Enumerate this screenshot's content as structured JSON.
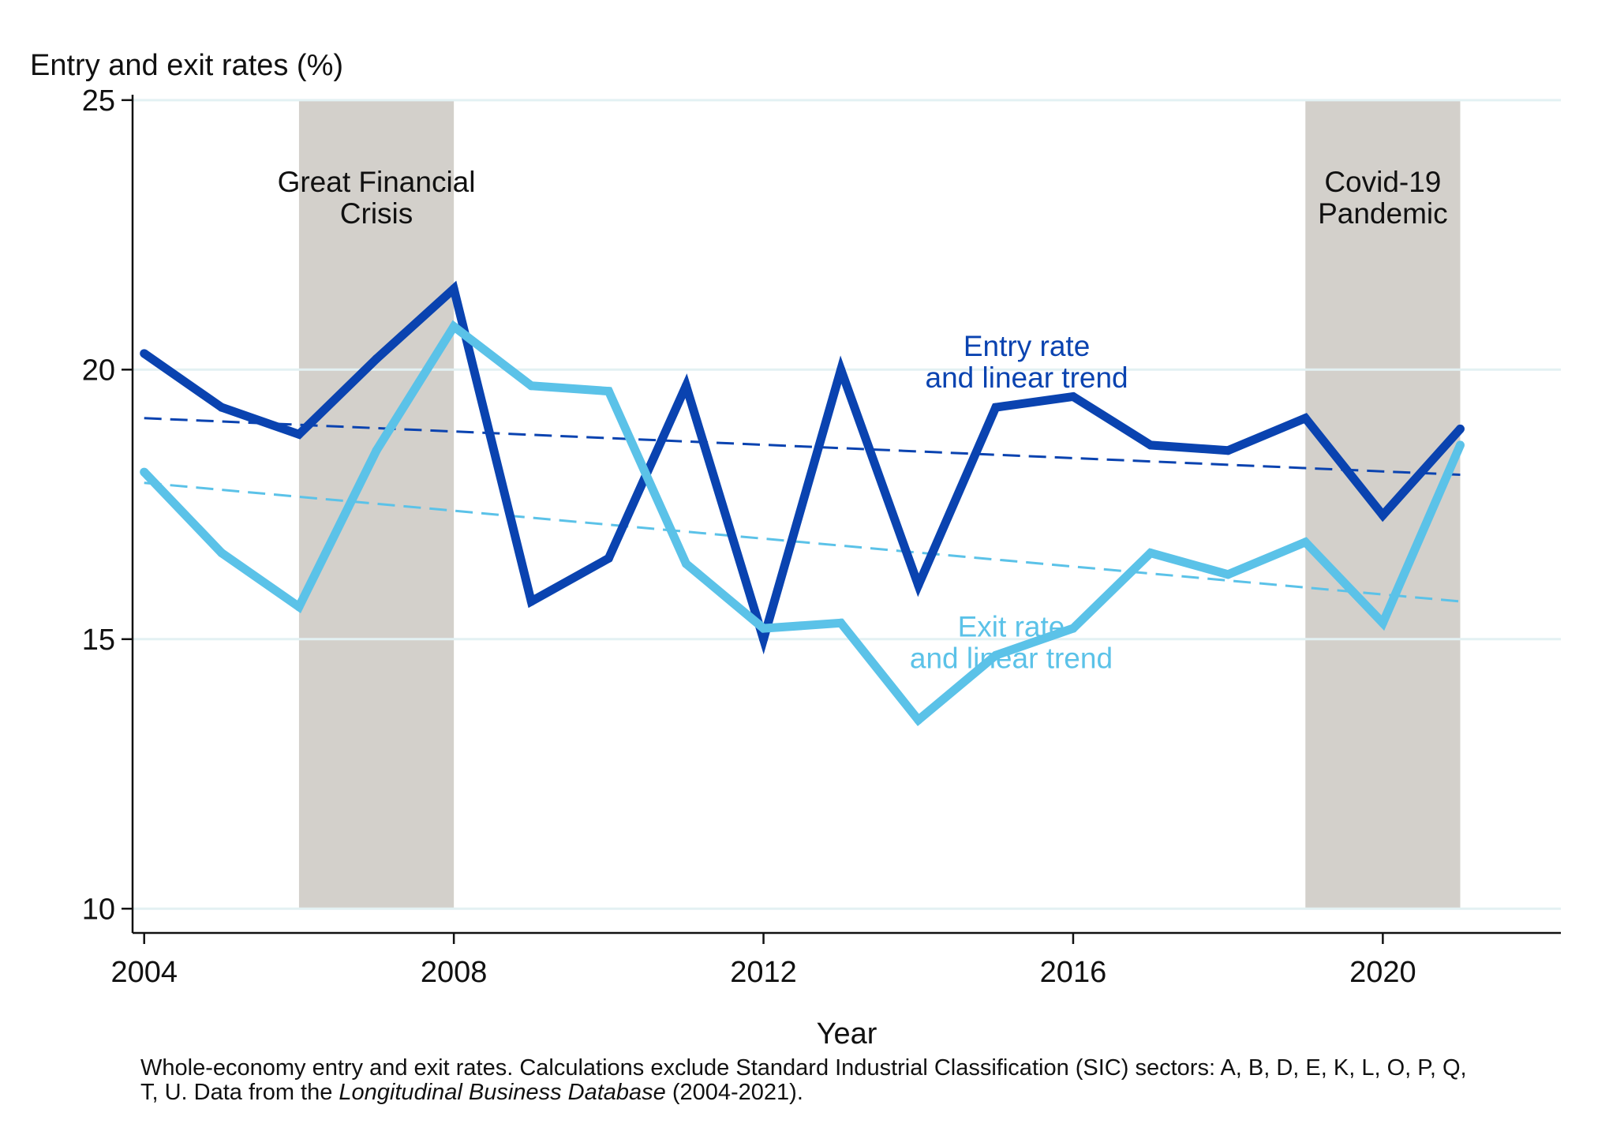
{
  "chart_data": {
    "type": "line",
    "ylabel": "Entry and exit rates (%)",
    "xlabel": "Year",
    "xlim": [
      2003.85,
      2022.3
    ],
    "ylim": [
      9.55,
      25.1
    ],
    "x_ticks": [
      2004,
      2008,
      2012,
      2016,
      2020
    ],
    "y_ticks": [
      10,
      15,
      20,
      25
    ],
    "grid": "horizontal",
    "x": [
      2004,
      2005,
      2006,
      2007,
      2008,
      2009,
      2010,
      2011,
      2012,
      2013,
      2014,
      2015,
      2016,
      2017,
      2018,
      2019,
      2020,
      2021
    ],
    "series": [
      {
        "name": "Entry rate and linear trend",
        "label_lines": [
          "Entry rate",
          "and linear trend"
        ],
        "label_at": [
          2015.4,
          20.25
        ],
        "color": "#0a43b0",
        "values": [
          20.3,
          19.3,
          18.8,
          20.2,
          21.5,
          15.7,
          16.5,
          19.7,
          15.0,
          20.0,
          16.0,
          19.3,
          19.5,
          18.6,
          18.5,
          19.1,
          17.3,
          18.9
        ],
        "trend": [
          19.1,
          18.05
        ]
      },
      {
        "name": "Exit rate and linear trend",
        "label_lines": [
          "Exit rate",
          "and linear trend"
        ],
        "label_at": [
          2015.2,
          15.05
        ],
        "color": "#5bc2e8",
        "values": [
          18.1,
          16.6,
          15.6,
          18.5,
          20.8,
          19.7,
          19.6,
          16.4,
          15.2,
          15.3,
          13.5,
          14.7,
          15.2,
          16.6,
          16.2,
          16.8,
          15.3,
          18.6
        ],
        "trend": [
          17.9,
          15.7
        ]
      }
    ],
    "shaded_periods": [
      {
        "label_lines": [
          "Great Financial",
          "Crisis"
        ],
        "x_range": [
          2006,
          2008
        ],
        "label_at": [
          2007.0,
          23.3
        ],
        "y_range": [
          10,
          25
        ]
      },
      {
        "label_lines": [
          "Covid-19",
          "Pandemic"
        ],
        "x_range": [
          2019,
          2021
        ],
        "label_at": [
          2020.0,
          23.3
        ],
        "y_range": [
          10,
          25
        ]
      }
    ],
    "colors": {
      "shade": "#d3d0cb",
      "grid": "#e3f1f3",
      "axis": "#111111"
    }
  },
  "footnote": {
    "line1": "Whole-economy entry and exit rates. Calculations exclude Standard Industrial Classification (SIC) sectors: A, B, D, E, K, L, O, P, Q,",
    "line2_before": "T, U. Data from the ",
    "line2_italic": "Longitudinal Business Database",
    "line2_after": " (2004-2021)."
  }
}
